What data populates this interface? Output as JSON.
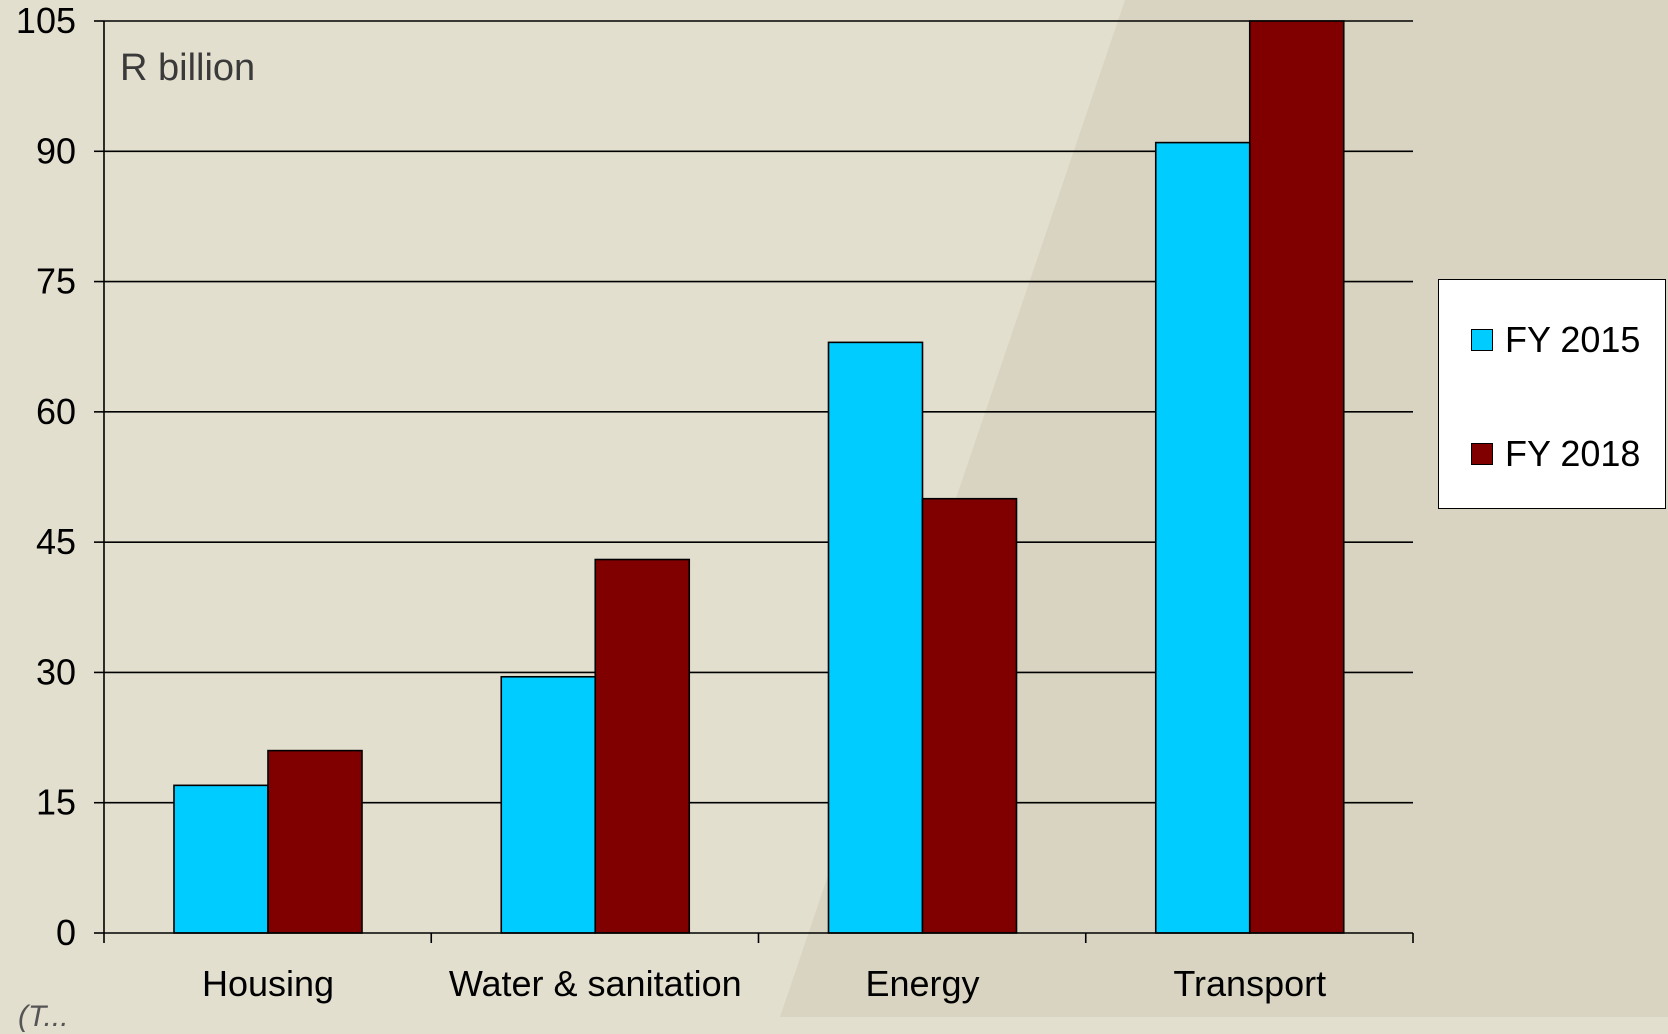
{
  "chart_data": {
    "type": "bar",
    "unit_label": "R billion",
    "categories": [
      "Housing",
      "Water & sanitation",
      "Energy",
      "Transport"
    ],
    "series": [
      {
        "name": "FY 2015",
        "color": "#00ccff",
        "values": [
          17,
          29.5,
          68,
          91
        ]
      },
      {
        "name": "FY 2018",
        "color": "#800000",
        "values": [
          21,
          43,
          50,
          105
        ]
      }
    ],
    "ylim": [
      0,
      105
    ],
    "yticks": [
      0,
      15,
      30,
      45,
      60,
      75,
      90,
      105
    ],
    "grid": true,
    "legend_position": "right"
  },
  "source_note": "(T..."
}
